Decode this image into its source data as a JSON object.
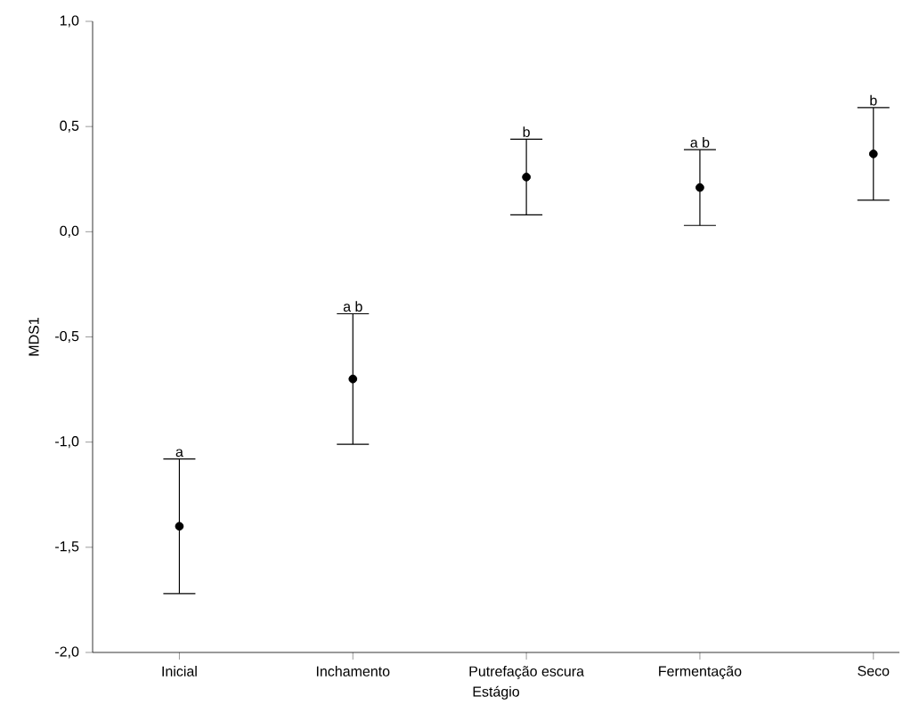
{
  "chart_data": {
    "type": "scatter",
    "xlabel": "Estágio",
    "ylabel": "MDS1",
    "categories": [
      "Inicial",
      "Inchamento",
      "Putrefação escura",
      "Fermentação",
      "Seco"
    ],
    "values": [
      -1.4,
      -0.7,
      0.26,
      0.21,
      0.37
    ],
    "errors": [
      0.32,
      0.31,
      0.18,
      0.18,
      0.22
    ],
    "color": "#000000",
    "marker": "circle",
    "ylim": [
      -2.0,
      1.0
    ],
    "yticks": [
      {
        "value": -2.0,
        "label": "-2,0"
      },
      {
        "value": -1.5,
        "label": "-1,5"
      },
      {
        "value": -1.0,
        "label": "-1,0"
      },
      {
        "value": -0.5,
        "label": "-0,5"
      },
      {
        "value": 0.0,
        "label": "0,0"
      },
      {
        "value": 0.5,
        "label": "0,5"
      },
      {
        "value": 1.0,
        "label": "1,0"
      }
    ],
    "annotations": [
      {
        "text": "a",
        "x": "Inicial",
        "y": -1.08
      },
      {
        "text": "a b",
        "x": "Inchamento",
        "y": -0.39
      },
      {
        "text": "b",
        "x": "Putrefação escura",
        "y": 0.44
      },
      {
        "text": "a b",
        "x": "Fermentação",
        "y": 0.39
      },
      {
        "text": "b",
        "x": "Seco",
        "y": 0.59
      }
    ]
  }
}
